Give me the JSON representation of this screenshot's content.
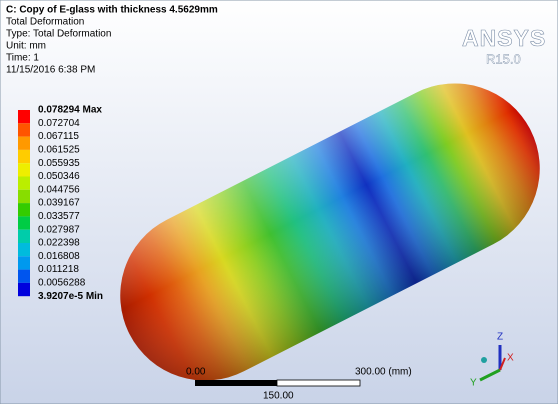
{
  "header": {
    "title": "C: Copy of E-glass with thickness 4.5629mm",
    "lines": [
      "Total Deformation",
      "Type: Total Deformation",
      "Unit: mm",
      "Time: 1",
      "11/15/2016 6:38 PM"
    ]
  },
  "logo": {
    "name": "ANSYS",
    "release": "R15.0"
  },
  "legend": {
    "labels": [
      "0.078294 Max",
      "0.072704",
      "0.067115",
      "0.061525",
      "0.055935",
      "0.050346",
      "0.044756",
      "0.039167",
      "0.033577",
      "0.027987",
      "0.022398",
      "0.016808",
      "0.011218",
      "0.0056288",
      "3.9207e-5 Min"
    ],
    "colors": [
      "#ff0000",
      "#ff5500",
      "#ff9900",
      "#ffcc00",
      "#eeee00",
      "#bbee00",
      "#88dd00",
      "#33cc00",
      "#00cc44",
      "#00ccaa",
      "#00bbdd",
      "#0099ee",
      "#0055ee",
      "#0000dd"
    ]
  },
  "scale": {
    "start": "0.00",
    "end": "300.00 (mm)",
    "middle": "150.00"
  },
  "triad": {
    "z": "Z",
    "x": "X",
    "y": "Y"
  }
}
